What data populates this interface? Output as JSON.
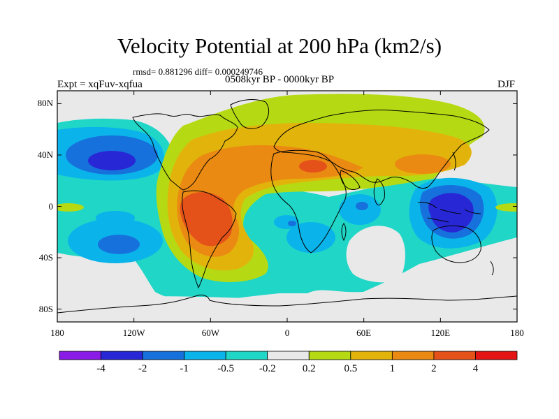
{
  "title": "Velocity Potential at 200 hPa (km2/s)",
  "stats": "rmsd= 0.881296 diff= 0.000249746",
  "experiment": "Expt = xqFuv-xqfua",
  "period": "0508kyr BP - 0000kyr BP",
  "season": "DJF",
  "map": {
    "projection": "cylindrical-equidistant",
    "lon_range": [
      -180,
      180
    ],
    "lat_range": [
      -90,
      90
    ],
    "x_ticks": [
      {
        "lon": -180,
        "label": "180"
      },
      {
        "lon": -120,
        "label": "120W"
      },
      {
        "lon": -60,
        "label": "60W"
      },
      {
        "lon": 0,
        "label": "0"
      },
      {
        "lon": 60,
        "label": "60E"
      },
      {
        "lon": 120,
        "label": "120E"
      },
      {
        "lon": 180,
        "label": "180"
      }
    ],
    "y_ticks": [
      {
        "lat": 80,
        "label": "80N"
      },
      {
        "lat": 40,
        "label": "40N"
      },
      {
        "lat": 0,
        "label": "0"
      },
      {
        "lat": -40,
        "label": "40S"
      },
      {
        "lat": -80,
        "label": "80S"
      }
    ]
  },
  "colorbar": {
    "colors": [
      "#8a1ae6",
      "#2727d6",
      "#1771dc",
      "#0ab4ea",
      "#1fd6c7",
      "#e9e9e9",
      "#b5da13",
      "#e2b40b",
      "#ea8a12",
      "#e4521a",
      "#e51414"
    ],
    "labels": [
      "-4",
      "-2",
      "-1",
      "-0.5",
      "-0.2",
      "0.2",
      "0.5",
      "1",
      "2",
      "4"
    ]
  },
  "features": [
    {
      "lon": -150,
      "lat": 32,
      "value": -2.8
    },
    {
      "lon": -60,
      "lat": -10,
      "value": 4.5
    },
    {
      "lon": 128,
      "lat": -2,
      "value": -3.0
    },
    {
      "lon": 40,
      "lat": 35,
      "value": 1.2
    },
    {
      "lon": -135,
      "lat": -30,
      "value": -1.5
    },
    {
      "lon": 80,
      "lat": -40,
      "value": 0.0
    }
  ]
}
